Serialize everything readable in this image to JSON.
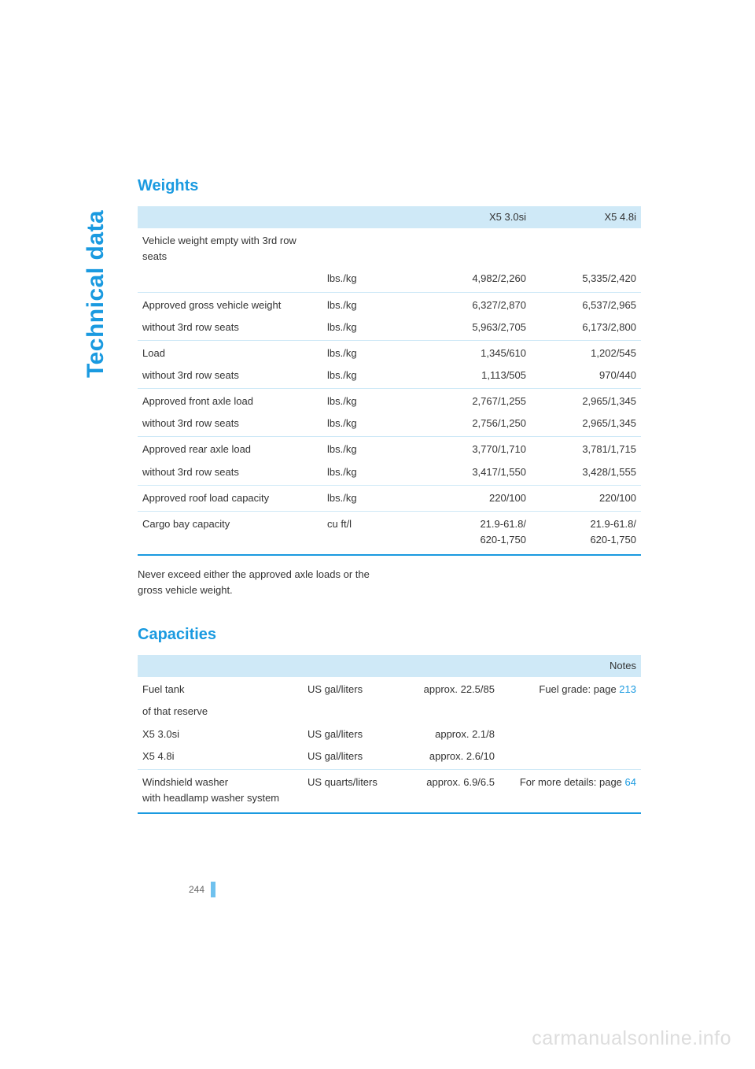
{
  "colors": {
    "accent": "#1a9ae0",
    "header_bg": "#cfe9f7",
    "rule": "#cfe9f7",
    "text": "#333333",
    "watermark": "#dddddd"
  },
  "side_label": "Technical data",
  "page_number": "244",
  "watermark": "carmanualsonline.info",
  "weights": {
    "heading": "Weights",
    "columns": {
      "blank": "",
      "c1": "X5 3.0si",
      "c2": "X5 4.8i"
    },
    "rows": [
      {
        "label": "Vehicle weight empty with 3rd row seats",
        "unit": "",
        "v1": "",
        "v2": "",
        "cls": "group-start"
      },
      {
        "label": "",
        "unit": "lbs./kg",
        "v1": "4,982/2,260",
        "v2": "5,335/2,420",
        "cls": "group-end"
      },
      {
        "label": "Approved gross vehicle weight",
        "unit": "lbs./kg",
        "v1": "6,327/2,870",
        "v2": "6,537/2,965",
        "cls": "group-start"
      },
      {
        "label": "without 3rd row seats",
        "unit": "lbs./kg",
        "v1": "5,963/2,705",
        "v2": "6,173/2,800",
        "cls": "group-end"
      },
      {
        "label": "Load",
        "unit": "lbs./kg",
        "v1": "1,345/610",
        "v2": "1,202/545",
        "cls": "group-start"
      },
      {
        "label": "without 3rd row seats",
        "unit": "lbs./kg",
        "v1": "1,113/505",
        "v2": "970/440",
        "cls": "group-end"
      },
      {
        "label": "Approved front axle load",
        "unit": "lbs./kg",
        "v1": "2,767/1,255",
        "v2": "2,965/1,345",
        "cls": "group-start"
      },
      {
        "label": "without 3rd row seats",
        "unit": "lbs./kg",
        "v1": "2,756/1,250",
        "v2": "2,965/1,345",
        "cls": "group-end"
      },
      {
        "label": "Approved rear axle load",
        "unit": "lbs./kg",
        "v1": "3,770/1,710",
        "v2": "3,781/1,715",
        "cls": "group-start"
      },
      {
        "label": "without 3rd row seats",
        "unit": "lbs./kg",
        "v1": "3,417/1,550",
        "v2": "3,428/1,555",
        "cls": "group-end"
      },
      {
        "label": "Approved roof load capacity",
        "unit": "lbs./kg",
        "v1": "220/100",
        "v2": "220/100",
        "cls": "group-start group-end"
      },
      {
        "label": "Cargo bay capacity",
        "unit": "cu ft/l",
        "v1": "21.9-61.8/\n620-1,750",
        "v2": "21.9-61.8/\n620-1,750",
        "cls": "group-start last"
      }
    ],
    "footnote": "Never exceed either the approved axle loads or the gross vehicle weight."
  },
  "capacities": {
    "heading": "Capacities",
    "columns": {
      "notes": "Notes"
    },
    "rows": [
      {
        "label": "Fuel tank",
        "unit": "US gal/liters",
        "val": "approx. 22.5/85",
        "note_pre": "Fuel grade: page ",
        "note_link": "213",
        "cls": "group-start"
      },
      {
        "label": "of that reserve",
        "unit": "",
        "val": "",
        "note_pre": "",
        "note_link": "",
        "cls": ""
      },
      {
        "label": "X5 3.0si",
        "unit": "US gal/liters",
        "val": "approx. 2.1/8",
        "note_pre": "",
        "note_link": "",
        "cls": ""
      },
      {
        "label": "X5 4.8i",
        "unit": "US gal/liters",
        "val": "approx. 2.6/10",
        "note_pre": "",
        "note_link": "",
        "cls": "group-end"
      },
      {
        "label": "Windshield washer\nwith headlamp washer system",
        "unit": "US quarts/liters",
        "val": "approx. 6.9/6.5",
        "note_pre": "For more details: page ",
        "note_link": "64",
        "cls": "group-start last"
      }
    ]
  }
}
